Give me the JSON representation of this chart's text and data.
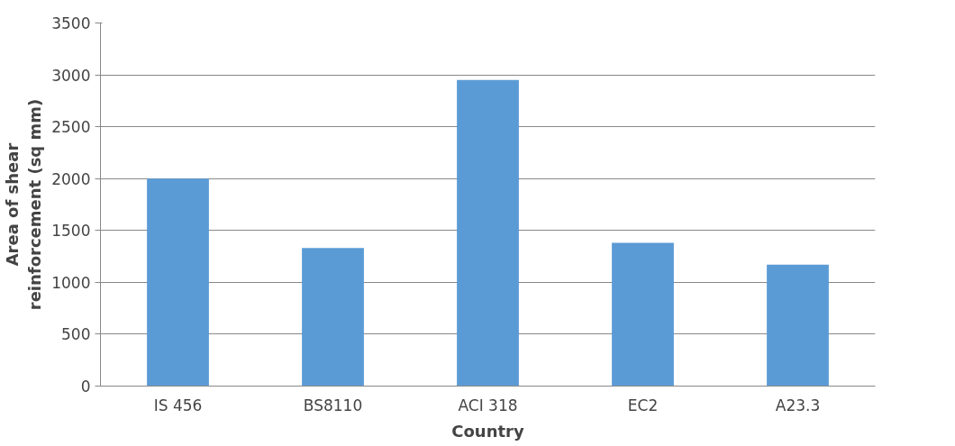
{
  "chart_data": {
    "type": "bar",
    "xlabel": "Country",
    "ylabel": "Area of shear\nreinforcement (sq mm)",
    "categories": [
      "IS 456",
      "BS8110",
      "ACI 318",
      "EC2",
      "A23.3"
    ],
    "values": [
      2000,
      1330,
      2950,
      1380,
      1170
    ],
    "color": "#5b9bd5",
    "ylim": [
      0,
      3500
    ],
    "yticks": [
      0,
      500,
      1000,
      1500,
      2000,
      2500,
      3000,
      3500
    ],
    "grid": "y"
  }
}
